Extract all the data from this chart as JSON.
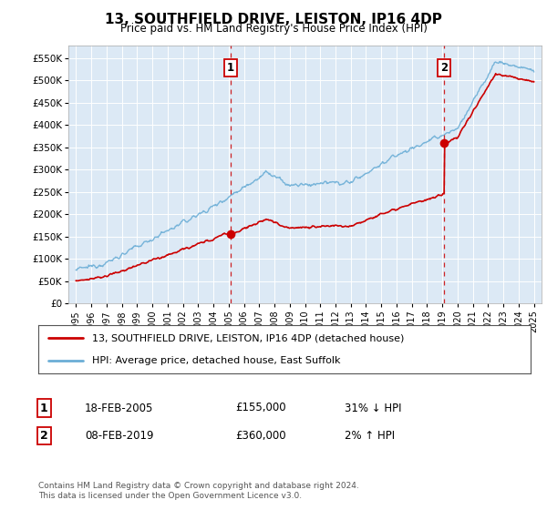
{
  "title": "13, SOUTHFIELD DRIVE, LEISTON, IP16 4DP",
  "subtitle": "Price paid vs. HM Land Registry's House Price Index (HPI)",
  "legend_line1": "13, SOUTHFIELD DRIVE, LEISTON, IP16 4DP (detached house)",
  "legend_line2": "HPI: Average price, detached house, East Suffolk",
  "sale1_date": "18-FEB-2005",
  "sale1_price": "£155,000",
  "sale1_hpi": "31% ↓ HPI",
  "sale1_year": 2005.12,
  "sale1_value": 155000,
  "sale2_date": "08-FEB-2019",
  "sale2_price": "£360,000",
  "sale2_hpi": "2% ↑ HPI",
  "sale2_year": 2019.12,
  "sale2_value": 360000,
  "background_color": "#dce9f5",
  "grid_color": "#ffffff",
  "hpi_color": "#6baed6",
  "price_color": "#cc0000",
  "vline_color": "#cc0000",
  "ylim": [
    0,
    577000
  ],
  "yticks": [
    0,
    50000,
    100000,
    150000,
    200000,
    250000,
    300000,
    350000,
    400000,
    450000,
    500000,
    550000
  ],
  "ytick_labels": [
    "£0",
    "£50K",
    "£100K",
    "£150K",
    "£200K",
    "£250K",
    "£300K",
    "£350K",
    "£400K",
    "£450K",
    "£500K",
    "£550K"
  ],
  "copyright": "Contains HM Land Registry data © Crown copyright and database right 2024.\nThis data is licensed under the Open Government Licence v3.0."
}
